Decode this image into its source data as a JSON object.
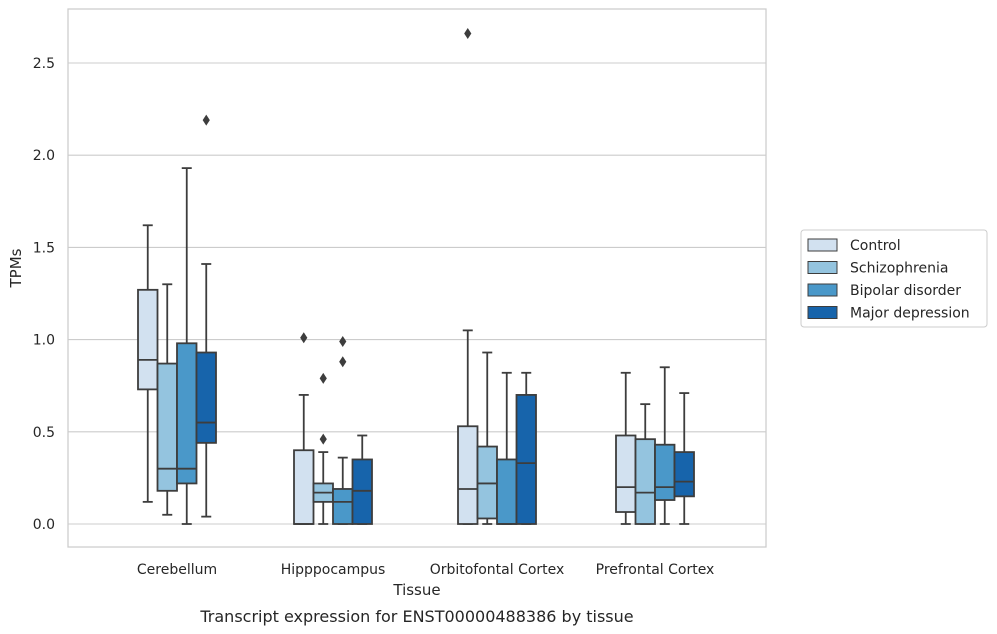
{
  "chart_data": {
    "type": "boxplot",
    "caption": "Transcript expression for ENST00000488386 by tissue",
    "xlabel": "Tissue",
    "ylabel": "TPMs",
    "ylim": [
      -0.13,
      2.8
    ],
    "yticks": [
      "0.0",
      "0.5",
      "1.0",
      "1.5",
      "2.0",
      "2.5"
    ],
    "grid": "horizontal",
    "legend_position": "right",
    "categories": [
      "Cerebellum",
      "Hipppocampus",
      "Orbitofontal Cortex",
      "Prefrontal Cortex"
    ],
    "series": [
      {
        "name": "Control",
        "color": "#d2e1f0",
        "boxes": [
          {
            "whislo": 0.12,
            "q1": 0.73,
            "med": 0.89,
            "q3": 1.27,
            "whishi": 1.62,
            "fliers": []
          },
          {
            "whislo": 0.0,
            "q1": 0.0,
            "med": 0.0,
            "q3": 0.4,
            "whishi": 0.7,
            "fliers": [
              1.01
            ]
          },
          {
            "whislo": 0.0,
            "q1": 0.0,
            "med": 0.19,
            "q3": 0.53,
            "whishi": 1.05,
            "fliers": [
              2.66
            ]
          },
          {
            "whislo": 0.0,
            "q1": 0.065,
            "med": 0.2,
            "q3": 0.48,
            "whishi": 0.82,
            "fliers": []
          }
        ]
      },
      {
        "name": "Schizophrenia",
        "color": "#94c4df",
        "boxes": [
          {
            "whislo": 0.05,
            "q1": 0.18,
            "med": 0.3,
            "q3": 0.87,
            "whishi": 1.3,
            "fliers": []
          },
          {
            "whislo": 0.0,
            "q1": 0.12,
            "med": 0.17,
            "q3": 0.22,
            "whishi": 0.39,
            "fliers": [
              0.46,
              0.79
            ]
          },
          {
            "whislo": 0.0,
            "q1": 0.03,
            "med": 0.22,
            "q3": 0.42,
            "whishi": 0.93,
            "fliers": []
          },
          {
            "whislo": 0.0,
            "q1": 0.0,
            "med": 0.17,
            "q3": 0.46,
            "whishi": 0.65,
            "fliers": []
          }
        ]
      },
      {
        "name": "Bipolar disorder",
        "color": "#4a98c9",
        "boxes": [
          {
            "whislo": 0.0,
            "q1": 0.22,
            "med": 0.3,
            "q3": 0.98,
            "whishi": 1.93,
            "fliers": []
          },
          {
            "whislo": 0.0,
            "q1": 0.0,
            "med": 0.12,
            "q3": 0.19,
            "whishi": 0.36,
            "fliers": [
              0.88,
              0.99
            ]
          },
          {
            "whislo": 0.0,
            "q1": 0.0,
            "med": 0.0,
            "q3": 0.35,
            "whishi": 0.82,
            "fliers": []
          },
          {
            "whislo": 0.0,
            "q1": 0.13,
            "med": 0.2,
            "q3": 0.43,
            "whishi": 0.85,
            "fliers": []
          }
        ]
      },
      {
        "name": "Major depression",
        "color": "#1764ab",
        "boxes": [
          {
            "whislo": 0.04,
            "q1": 0.44,
            "med": 0.55,
            "q3": 0.93,
            "whishi": 1.41,
            "fliers": [
              2.19
            ]
          },
          {
            "whislo": 0.0,
            "q1": 0.0,
            "med": 0.18,
            "q3": 0.35,
            "whishi": 0.48,
            "fliers": []
          },
          {
            "whislo": 0.0,
            "q1": 0.0,
            "med": 0.33,
            "q3": 0.7,
            "whishi": 0.82,
            "fliers": []
          },
          {
            "whislo": 0.0,
            "q1": 0.15,
            "med": 0.23,
            "q3": 0.39,
            "whishi": 0.71,
            "fliers": []
          }
        ]
      }
    ]
  }
}
